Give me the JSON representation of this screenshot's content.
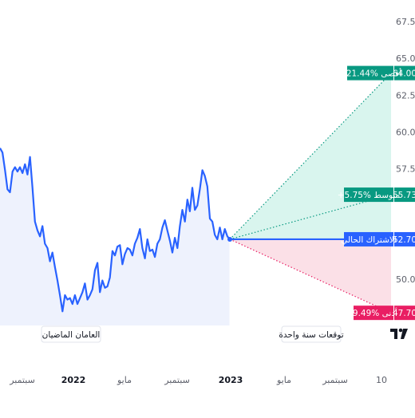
{
  "colors": {
    "line": "#2962ff",
    "history_fill": "#eef2fd",
    "upper_zone": "#d9f5ee",
    "lower_zone": "#fbe0e7",
    "max": "#089981",
    "avg": "#089981",
    "current": "#2962ff",
    "min": "#e91e63"
  },
  "watermark_icon": "tradingview-logo-icon",
  "chart_data": {
    "type": "line",
    "title": "",
    "xlabel": "",
    "ylabel": "",
    "ylim": [
      45.0,
      68.75
    ],
    "y_ticks": [
      "67.50",
      "65.00",
      "62.50",
      "60.00",
      "57.50",
      "50.00"
    ],
    "x_ticks": [
      {
        "label": "سبتمبر",
        "bold": false
      },
      {
        "label": "2022",
        "bold": true
      },
      {
        "label": "مايو",
        "bold": false
      },
      {
        "label": "سبتمبر",
        "bold": false
      },
      {
        "label": "2023",
        "bold": true
      },
      {
        "label": "مايو",
        "bold": false
      },
      {
        "label": "سبتمبر",
        "bold": false
      },
      {
        "label": "10",
        "bold": false
      }
    ],
    "history_label": "العامان الماضيان",
    "forecast_label": "توقعات سنة واحدة",
    "history_values": [
      58.9,
      58.6,
      57.4,
      56.1,
      55.9,
      57.3,
      57.6,
      57.3,
      57.6,
      57.2,
      57.8,
      57.1,
      58.3,
      56.2,
      53.9,
      53.3,
      52.9,
      53.6,
      52.4,
      52.1,
      51.2,
      51.8,
      50.8,
      49.9,
      48.9,
      47.8,
      48.9,
      48.6,
      48.7,
      48.3,
      48.9,
      48.3,
      48.7,
      49.1,
      49.7,
      48.6,
      48.9,
      49.3,
      50.6,
      51.1,
      49.1,
      49.9,
      49.4,
      49.5,
      50.1,
      51.9,
      51.6,
      52.2,
      52.3,
      51.0,
      51.7,
      52.1,
      52.0,
      51.6,
      52.4,
      52.8,
      53.4,
      52.1,
      51.4,
      52.7,
      51.9,
      52.0,
      51.5,
      52.4,
      52.7,
      53.5,
      54.0,
      53.3,
      52.6,
      51.8,
      52.8,
      52.1,
      53.6,
      54.7,
      53.9,
      55.4,
      54.6,
      56.2,
      54.7,
      55.0,
      56.1,
      57.4,
      57.0,
      56.3,
      54.1,
      53.9,
      53.0,
      52.7,
      53.5,
      52.7,
      53.4,
      52.9,
      52.7
    ],
    "series": [
      {
        "name": "أقصى",
        "label": "+21.44% أقصى",
        "value": 64.0,
        "value_label": "64.00"
      },
      {
        "name": "متوسط",
        "label": "+5.75% متوسط",
        "value": 55.73,
        "value_label": "55.73"
      },
      {
        "name": "الاشتراك الحالي",
        "label": "الاشتراك الحالي",
        "value": 52.7,
        "value_label": "52.70"
      },
      {
        "name": "أدنى",
        "label": "-9.49% أدنى",
        "value": 47.7,
        "value_label": "47.70"
      }
    ]
  }
}
